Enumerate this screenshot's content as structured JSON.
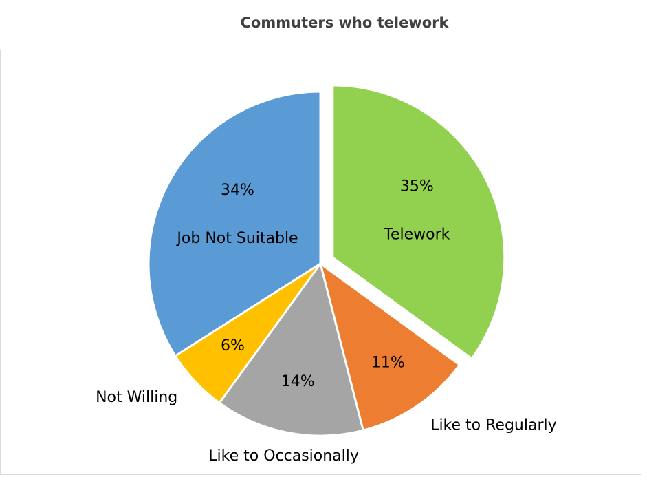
{
  "chart_data": {
    "type": "pie",
    "title": "Commuters who telework",
    "categories": [
      "Telework",
      "Like to Regularly",
      "Like to Occasionally",
      "Not Willing",
      "Job Not Suitable"
    ],
    "values": [
      35,
      11,
      14,
      6,
      34
    ],
    "value_labels": [
      "35%",
      "11%",
      "14%",
      "6%",
      "34%"
    ],
    "colors": [
      "#92d050",
      "#ed7d31",
      "#a5a5a5",
      "#ffc000",
      "#5b9bd5"
    ],
    "explode": [
      true,
      false,
      false,
      false,
      false
    ]
  }
}
